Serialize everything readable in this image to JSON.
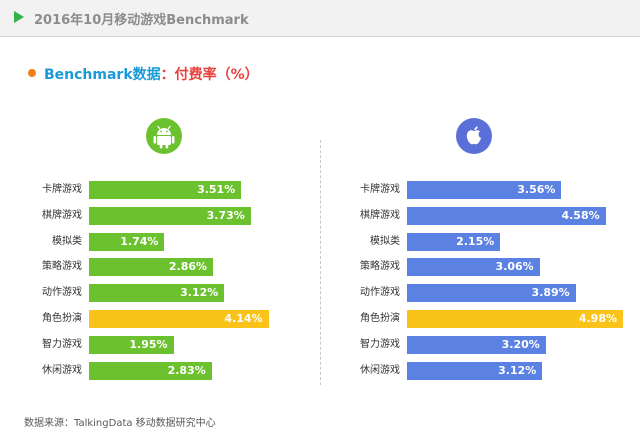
{
  "header": {
    "title": "2016年10月移动游戏Benchmark"
  },
  "subtitle": {
    "main": "Benchmark数据",
    "metric": "：付费率（%）"
  },
  "icons": {
    "left": "android-icon",
    "right": "apple-icon"
  },
  "colors": {
    "android": "#6cc12e",
    "ios": "#5b82e2",
    "highlight": "#f9c31a",
    "accent": "#2fb34a"
  },
  "footnote": "数据来源：TalkingData 移动数据研究中心",
  "chart_data": [
    {
      "type": "bar",
      "orientation": "horizontal",
      "platform": "android",
      "categories": [
        "卡牌游戏",
        "棋牌游戏",
        "模拟类",
        "策略游戏",
        "动作游戏",
        "角色扮演",
        "智力游戏",
        "休闲游戏"
      ],
      "values": [
        3.51,
        3.73,
        1.74,
        2.86,
        3.12,
        4.14,
        1.95,
        2.83
      ],
      "value_labels": [
        "3.51%",
        "3.73%",
        "1.74%",
        "2.86%",
        "3.12%",
        "4.14%",
        "1.95%",
        "2.83%"
      ],
      "highlight_index": 5,
      "xlim": [
        0,
        5
      ]
    },
    {
      "type": "bar",
      "orientation": "horizontal",
      "platform": "ios",
      "categories": [
        "卡牌游戏",
        "棋牌游戏",
        "模拟类",
        "策略游戏",
        "动作游戏",
        "角色扮演",
        "智力游戏",
        "休闲游戏"
      ],
      "values": [
        3.56,
        4.58,
        2.15,
        3.06,
        3.89,
        4.98,
        3.2,
        3.12
      ],
      "value_labels": [
        "3.56%",
        "4.58%",
        "2.15%",
        "3.06%",
        "3.89%",
        "4.98%",
        "3.20%",
        "3.12%"
      ],
      "highlight_index": 5,
      "xlim": [
        0,
        5
      ]
    }
  ]
}
